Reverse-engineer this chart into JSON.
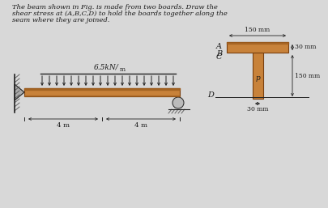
{
  "title_line1": "The beam shown in Fig. is made from two boards. Draw the",
  "title_line2": "shear stress at (A,B,C,D) to hold the boards together along the",
  "title_line3": "seam where they are joined.",
  "bg_color": "#d8d8d8",
  "wood_color": "#c8823a",
  "wood_edge": "#7a4010",
  "wood_dark": "#a06020",
  "load_label": "6.5kN/",
  "load_sub": "m",
  "dim_4m_left": "4 m",
  "dim_4m_right": "4 m",
  "dim_150mm_top": "150 mm",
  "dim_30mm_top": "30 mm",
  "dim_150mm_web": "150 mm",
  "dim_30mm_bot": "30 mm",
  "label_p": "p",
  "text_color": "#1a1a1a",
  "line_color": "#222222"
}
